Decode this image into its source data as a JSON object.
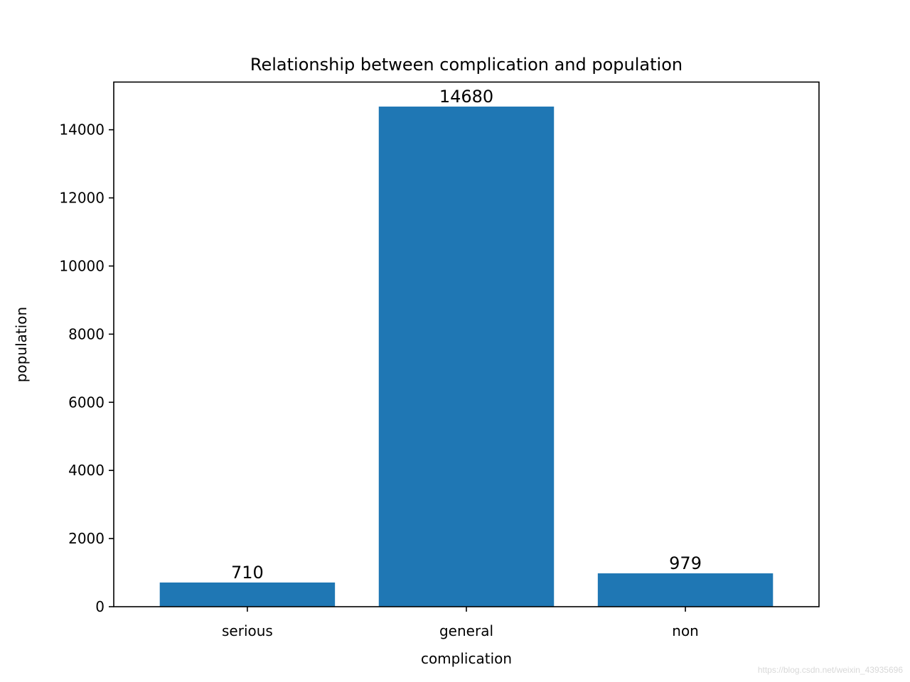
{
  "chart_data": {
    "type": "bar",
    "title": "Relationship between complication and population",
    "xlabel": "complication",
    "ylabel": "population",
    "categories": [
      "serious",
      "general",
      "non"
    ],
    "values": [
      710,
      14680,
      979
    ],
    "data_labels": [
      "710",
      "14680",
      "979"
    ],
    "ylim": [
      0,
      15400
    ],
    "yticks": [
      0,
      2000,
      4000,
      6000,
      8000,
      10000,
      12000,
      14000
    ],
    "ytick_labels": [
      "0",
      "2000",
      "4000",
      "6000",
      "8000",
      "10000",
      "12000",
      "14000"
    ],
    "bar_color": "#1f77b4",
    "grid": false,
    "legend": "none"
  },
  "watermark": "https://blog.csdn.net/weixin_43935696"
}
